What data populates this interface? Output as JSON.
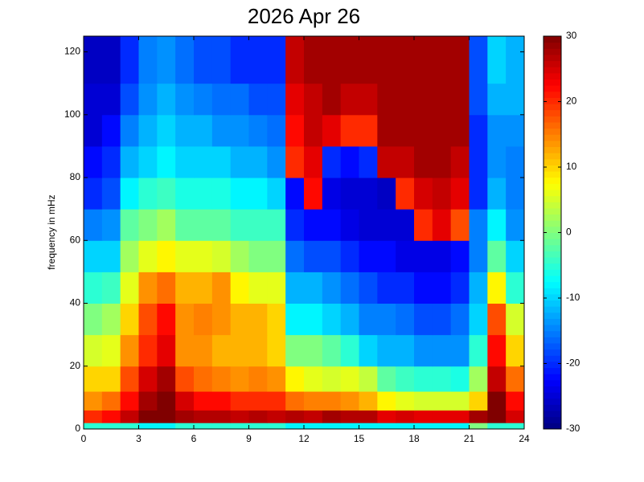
{
  "chart_data": {
    "type": "heatmap",
    "title": "2026 Apr 26",
    "y_label": "frequency in mHz",
    "x_bins": [
      0,
      1,
      2,
      3,
      4,
      5,
      6,
      7,
      8,
      9,
      10,
      11,
      12,
      13,
      14,
      15,
      16,
      17,
      18,
      19,
      20,
      21,
      22,
      23,
      24
    ],
    "y_bins": [
      0,
      2,
      6,
      12,
      20,
      30,
      40,
      50,
      60,
      70,
      80,
      90,
      100,
      110,
      125
    ],
    "z": [
      [
        -5,
        -5,
        -5,
        -8,
        -8,
        -5,
        -5,
        -5,
        -5,
        -5,
        -5,
        -8,
        -8,
        -8,
        -8,
        -8,
        -8,
        -8,
        -8,
        -8,
        -8,
        0,
        -5,
        -5
      ],
      [
        20,
        22,
        26,
        30,
        30,
        28,
        27,
        27,
        26,
        27,
        26,
        27,
        26,
        28,
        27,
        27,
        24,
        25,
        24,
        24,
        24,
        28,
        30,
        25
      ],
      [
        14,
        16,
        22,
        28,
        30,
        25,
        22,
        22,
        20,
        20,
        20,
        16,
        15,
        15,
        14,
        12,
        8,
        6,
        5,
        5,
        5,
        10,
        30,
        22
      ],
      [
        10,
        10,
        18,
        25,
        28,
        18,
        16,
        15,
        14,
        15,
        14,
        8,
        6,
        5,
        6,
        4,
        -2,
        -4,
        -5,
        -5,
        -6,
        2,
        26,
        16
      ],
      [
        5,
        6,
        14,
        20,
        24,
        14,
        14,
        12,
        12,
        12,
        10,
        0,
        0,
        -2,
        -5,
        -10,
        -12,
        -12,
        -14,
        -14,
        -14,
        -5,
        22,
        10
      ],
      [
        0,
        2,
        10,
        18,
        22,
        14,
        15,
        14,
        12,
        12,
        10,
        -8,
        -8,
        -10,
        -12,
        -15,
        -15,
        -16,
        -18,
        -18,
        -16,
        -10,
        18,
        5
      ],
      [
        -5,
        -4,
        6,
        14,
        16,
        12,
        12,
        14,
        8,
        6,
        6,
        -12,
        -12,
        -14,
        -16,
        -18,
        -20,
        -20,
        -22,
        -22,
        -20,
        -12,
        8,
        -5
      ],
      [
        -10,
        -10,
        2,
        6,
        8,
        6,
        6,
        5,
        2,
        0,
        0,
        -16,
        -18,
        -18,
        -20,
        -22,
        -22,
        -24,
        -24,
        -24,
        -22,
        -15,
        -2,
        -10
      ],
      [
        -15,
        -14,
        -2,
        0,
        2,
        -2,
        -2,
        -2,
        -4,
        -4,
        -4,
        -20,
        -22,
        -22,
        -24,
        -25,
        -25,
        -25,
        20,
        24,
        18,
        -15,
        -8,
        -14
      ],
      [
        -20,
        -18,
        -8,
        -5,
        -4,
        -6,
        -6,
        -6,
        -8,
        -8,
        -10,
        -22,
        22,
        -24,
        -25,
        -25,
        -26,
        20,
        25,
        26,
        24,
        -20,
        -12,
        -15
      ],
      [
        -22,
        -20,
        -12,
        -10,
        -8,
        -10,
        -10,
        -10,
        -12,
        -12,
        -14,
        20,
        24,
        -20,
        -22,
        -20,
        26,
        26,
        28,
        28,
        26,
        -20,
        -14,
        -15
      ],
      [
        -25,
        -22,
        -15,
        -12,
        -10,
        -12,
        -12,
        -14,
        -14,
        -15,
        -16,
        22,
        26,
        24,
        20,
        20,
        28,
        28,
        28,
        28,
        28,
        -20,
        -14,
        -14
      ],
      [
        -25,
        -25,
        -18,
        -14,
        -12,
        -14,
        -15,
        -16,
        -16,
        -18,
        -18,
        24,
        26,
        28,
        26,
        26,
        28,
        28,
        28,
        28,
        28,
        -18,
        -12,
        -12
      ],
      [
        -26,
        -26,
        -20,
        -15,
        -14,
        -16,
        -18,
        -18,
        -20,
        -20,
        -20,
        26,
        28,
        28,
        28,
        28,
        28,
        28,
        28,
        28,
        28,
        -18,
        -10,
        -12
      ]
    ],
    "colormap": "jet",
    "xlim": [
      0,
      24
    ],
    "xticks": [
      0,
      3,
      6,
      9,
      12,
      15,
      18,
      21,
      24
    ],
    "ylim": [
      0,
      125
    ],
    "yticks": [
      0,
      20,
      40,
      60,
      80,
      100,
      120
    ],
    "clim": [
      -30,
      30
    ],
    "cticks": [
      -30,
      -20,
      -10,
      0,
      10,
      20,
      30
    ]
  }
}
